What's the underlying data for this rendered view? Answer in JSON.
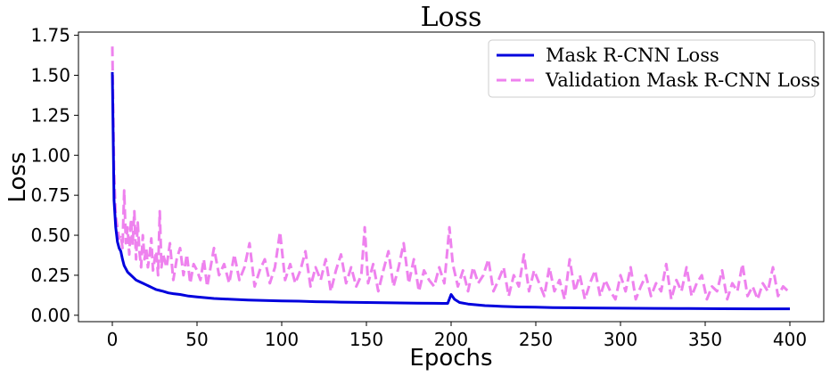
{
  "chart_data": {
    "type": "line",
    "title": "Loss",
    "xlabel": "Epochs",
    "ylabel": "Loss",
    "xlim": [
      -20,
      420
    ],
    "ylim": [
      -0.04,
      1.77
    ],
    "xticks": [
      0,
      50,
      100,
      150,
      200,
      250,
      300,
      350,
      400
    ],
    "yticks": [
      0.0,
      0.25,
      0.5,
      0.75,
      1.0,
      1.25,
      1.5,
      1.75
    ],
    "ytick_labels": [
      "0.00",
      "0.25",
      "0.50",
      "0.75",
      "1.00",
      "1.25",
      "1.50",
      "1.75"
    ],
    "grid": false,
    "legend_position": "top-right",
    "series": [
      {
        "name": "Mask R-CNN Loss",
        "color": "#0000dd",
        "style": "solid",
        "x": [
          0,
          1,
          2,
          3,
          4,
          5,
          6,
          7,
          8,
          9,
          10,
          12,
          14,
          16,
          18,
          20,
          22,
          24,
          26,
          28,
          30,
          33,
          36,
          40,
          45,
          50,
          55,
          60,
          70,
          80,
          90,
          100,
          110,
          120,
          130,
          140,
          150,
          160,
          170,
          180,
          190,
          195,
          198,
          200,
          202,
          205,
          210,
          215,
          220,
          225,
          230,
          240,
          250,
          260,
          270,
          280,
          290,
          300,
          320,
          340,
          360,
          380,
          400
        ],
        "values": [
          1.52,
          0.72,
          0.55,
          0.46,
          0.42,
          0.4,
          0.35,
          0.31,
          0.29,
          0.27,
          0.26,
          0.24,
          0.22,
          0.21,
          0.2,
          0.19,
          0.18,
          0.17,
          0.16,
          0.155,
          0.15,
          0.14,
          0.135,
          0.13,
          0.12,
          0.115,
          0.11,
          0.105,
          0.1,
          0.095,
          0.092,
          0.09,
          0.088,
          0.085,
          0.083,
          0.081,
          0.08,
          0.078,
          0.077,
          0.076,
          0.075,
          0.074,
          0.074,
          0.13,
          0.1,
          0.08,
          0.07,
          0.065,
          0.06,
          0.058,
          0.055,
          0.052,
          0.05,
          0.048,
          0.047,
          0.046,
          0.045,
          0.044,
          0.043,
          0.042,
          0.041,
          0.04,
          0.04
        ]
      },
      {
        "name": "Validation Mask R-CNN Loss",
        "color": "#ee82ee",
        "style": "dashed",
        "x": [
          0,
          1,
          2,
          3,
          4,
          5,
          6,
          7,
          8,
          9,
          10,
          11,
          12,
          13,
          14,
          15,
          16,
          17,
          18,
          19,
          20,
          21,
          22,
          23,
          24,
          25,
          26,
          27,
          28,
          29,
          30,
          32,
          34,
          36,
          38,
          40,
          42,
          44,
          46,
          48,
          50,
          52,
          54,
          56,
          58,
          60,
          63,
          66,
          69,
          72,
          75,
          78,
          81,
          84,
          87,
          90,
          93,
          96,
          99,
          102,
          105,
          108,
          111,
          114,
          117,
          120,
          123,
          126,
          129,
          132,
          135,
          138,
          141,
          144,
          147,
          149,
          151,
          154,
          157,
          160,
          163,
          166,
          169,
          172,
          175,
          178,
          181,
          184,
          187,
          190,
          193,
          196,
          199,
          201,
          204,
          207,
          210,
          213,
          216,
          219,
          222,
          225,
          228,
          231,
          234,
          237,
          240,
          243,
          246,
          249,
          252,
          255,
          258,
          261,
          264,
          267,
          270,
          273,
          276,
          279,
          282,
          285,
          288,
          291,
          294,
          297,
          300,
          303,
          306,
          309,
          312,
          315,
          318,
          321,
          324,
          327,
          330,
          333,
          336,
          339,
          342,
          345,
          348,
          351,
          354,
          357,
          360,
          363,
          366,
          369,
          372,
          375,
          378,
          381,
          384,
          387,
          390,
          393,
          396,
          399
        ],
        "values": [
          1.68,
          0.9,
          0.62,
          0.55,
          0.48,
          0.5,
          0.42,
          0.78,
          0.45,
          0.55,
          0.38,
          0.6,
          0.44,
          0.65,
          0.35,
          0.58,
          0.4,
          0.3,
          0.5,
          0.35,
          0.42,
          0.3,
          0.38,
          0.48,
          0.28,
          0.35,
          0.4,
          0.25,
          0.65,
          0.3,
          0.38,
          0.3,
          0.45,
          0.22,
          0.35,
          0.42,
          0.25,
          0.38,
          0.2,
          0.32,
          0.28,
          0.22,
          0.35,
          0.18,
          0.3,
          0.42,
          0.25,
          0.32,
          0.2,
          0.38,
          0.22,
          0.3,
          0.45,
          0.18,
          0.28,
          0.35,
          0.2,
          0.3,
          0.52,
          0.22,
          0.32,
          0.2,
          0.28,
          0.4,
          0.18,
          0.3,
          0.22,
          0.35,
          0.15,
          0.28,
          0.38,
          0.2,
          0.3,
          0.18,
          0.25,
          0.55,
          0.2,
          0.32,
          0.15,
          0.28,
          0.4,
          0.18,
          0.3,
          0.45,
          0.2,
          0.35,
          0.15,
          0.28,
          0.22,
          0.18,
          0.3,
          0.2,
          0.55,
          0.32,
          0.18,
          0.28,
          0.15,
          0.3,
          0.2,
          0.25,
          0.35,
          0.15,
          0.22,
          0.3,
          0.12,
          0.25,
          0.18,
          0.38,
          0.15,
          0.28,
          0.2,
          0.12,
          0.3,
          0.15,
          0.22,
          0.1,
          0.35,
          0.15,
          0.25,
          0.1,
          0.2,
          0.28,
          0.12,
          0.22,
          0.15,
          0.1,
          0.25,
          0.15,
          0.3,
          0.1,
          0.18,
          0.25,
          0.12,
          0.2,
          0.15,
          0.32,
          0.1,
          0.22,
          0.15,
          0.3,
          0.12,
          0.2,
          0.25,
          0.1,
          0.18,
          0.15,
          0.28,
          0.1,
          0.2,
          0.15,
          0.32,
          0.12,
          0.18,
          0.1,
          0.2,
          0.15,
          0.3,
          0.12,
          0.18,
          0.15
        ]
      }
    ]
  }
}
